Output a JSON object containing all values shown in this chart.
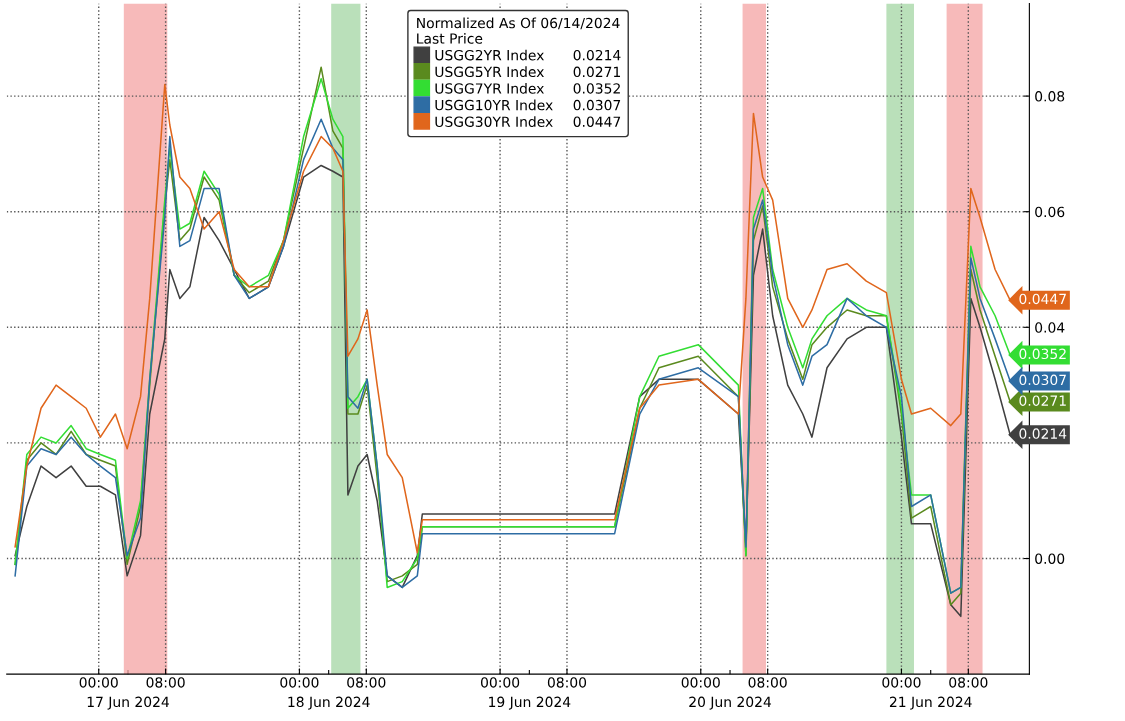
{
  "chart_data": {
    "type": "line",
    "legend_title": "Normalized As Of 06/14/2024\nLast Price",
    "x": [
      "2024-06-16T14:00",
      "2024-06-16T15:24",
      "2024-06-16T17:06",
      "2024-06-16T18:54",
      "2024-06-16T20:42",
      "2024-06-16T22:30",
      "2024-06-17T00:12",
      "2024-06-17T02:00",
      "2024-06-17T03:24",
      "2024-06-17T05:00",
      "2024-06-17T06:06",
      "2024-06-17T07:54",
      "2024-06-17T08:30",
      "2024-06-17T09:42",
      "2024-06-17T10:54",
      "2024-06-17T12:36",
      "2024-06-17T14:24",
      "2024-06-17T16:12",
      "2024-06-17T18:00",
      "2024-06-17T20:18",
      "2024-06-17T22:06",
      "2024-06-18T00:30",
      "2024-06-18T02:36",
      "2024-06-18T04:00",
      "2024-06-18T05:12",
      "2024-06-18T05:48",
      "2024-06-18T07:00",
      "2024-06-18T08:06",
      "2024-06-18T09:18",
      "2024-06-18T10:30",
      "2024-06-18T12:18",
      "2024-06-18T14:06",
      "2024-06-18T14:42",
      "2024-06-19T13:42",
      "2024-06-19T16:42",
      "2024-06-19T19:00",
      "2024-06-19T23:42",
      "2024-06-20T04:30",
      "2024-06-20T05:24",
      "2024-06-20T06:18",
      "2024-06-20T07:24",
      "2024-06-20T08:36",
      "2024-06-20T10:24",
      "2024-06-20T12:12",
      "2024-06-20T13:18",
      "2024-06-20T15:06",
      "2024-06-20T17:30",
      "2024-06-20T19:48",
      "2024-06-20T22:12",
      "2024-06-21T00:00",
      "2024-06-21T01:12",
      "2024-06-21T03:30",
      "2024-06-21T05:54",
      "2024-06-21T07:06",
      "2024-06-21T08:18",
      "2024-06-21T09:24",
      "2024-06-21T11:12",
      "2024-06-21T13:00"
    ],
    "series": [
      {
        "name": "USGG2YR Index",
        "color": "#404040",
        "values": [
          0.0005,
          0.009,
          0.016,
          0.014,
          0.016,
          0.0125,
          0.0125,
          0.011,
          -0.003,
          0.004,
          0.025,
          0.038,
          0.05,
          0.045,
          0.047,
          0.059,
          0.055,
          0.05,
          0.045,
          0.047,
          0.054,
          0.066,
          0.068,
          0.067,
          0.066,
          0.011,
          0.016,
          0.018,
          0.01,
          -0.003,
          -0.005,
          0.0005,
          0.0077,
          0.0077,
          0.028,
          0.031,
          0.031,
          0.025,
          0.002,
          0.049,
          0.057,
          0.042,
          0.03,
          0.025,
          0.021,
          0.033,
          0.038,
          0.04,
          0.04,
          0.021,
          0.006,
          0.006,
          -0.008,
          -0.01,
          0.045,
          0.04,
          0.031,
          0.0214
        ],
        "value_labels": [
          null,
          null,
          null,
          null,
          null,
          null,
          null,
          null,
          null,
          null,
          null,
          null,
          null,
          null,
          null,
          null,
          null,
          null,
          null,
          null,
          null,
          null,
          null,
          null,
          null,
          null,
          null,
          null,
          null,
          null,
          null,
          null,
          null,
          null,
          null,
          null,
          null,
          null,
          null,
          null,
          null,
          null,
          null,
          null,
          null,
          null,
          null,
          null,
          null,
          null,
          null,
          null,
          null,
          null,
          null,
          null,
          null,
          "0.0214"
        ]
      },
      {
        "name": "USGG5YR Index",
        "color": "#5a8a1e",
        "values": [
          -0.001,
          0.017,
          0.02,
          0.018,
          0.022,
          0.018,
          0.017,
          0.016,
          -0.001,
          0.009,
          0.03,
          0.061,
          0.069,
          0.055,
          0.057,
          0.066,
          0.062,
          0.049,
          0.046,
          0.048,
          0.055,
          0.071,
          0.085,
          0.074,
          0.071,
          0.025,
          0.025,
          0.03,
          0.014,
          -0.004,
          -0.003,
          -0.001,
          0.0055,
          0.0055,
          0.026,
          0.033,
          0.035,
          0.028,
          0.0005,
          0.055,
          0.061,
          0.047,
          0.038,
          0.031,
          0.037,
          0.04,
          0.043,
          0.042,
          0.042,
          0.025,
          0.007,
          0.009,
          -0.008,
          -0.006,
          0.05,
          0.043,
          0.035,
          0.0271
        ],
        "value_labels": [
          null,
          null,
          null,
          null,
          null,
          null,
          null,
          null,
          null,
          null,
          null,
          null,
          null,
          null,
          null,
          null,
          null,
          null,
          null,
          null,
          null,
          null,
          null,
          null,
          null,
          null,
          null,
          null,
          null,
          null,
          null,
          null,
          null,
          null,
          null,
          null,
          null,
          null,
          null,
          null,
          null,
          null,
          null,
          null,
          null,
          null,
          null,
          null,
          null,
          null,
          null,
          null,
          null,
          null,
          null,
          null,
          null,
          "0.0271"
        ]
      },
      {
        "name": "USGG7YR Index",
        "color": "#33dd33",
        "values": [
          -0.001,
          0.018,
          0.021,
          0.02,
          0.023,
          0.019,
          0.018,
          0.017,
          0.0,
          0.01,
          0.031,
          0.062,
          0.071,
          0.057,
          0.058,
          0.067,
          0.063,
          0.049,
          0.047,
          0.049,
          0.055,
          0.073,
          0.083,
          0.076,
          0.073,
          0.026,
          0.028,
          0.031,
          0.016,
          -0.005,
          -0.004,
          0.0,
          0.0055,
          0.0055,
          0.028,
          0.035,
          0.037,
          0.03,
          0.0005,
          0.059,
          0.064,
          0.05,
          0.04,
          0.033,
          0.038,
          0.042,
          0.045,
          0.043,
          0.042,
          0.026,
          0.011,
          0.011,
          -0.006,
          -0.005,
          0.054,
          0.047,
          0.042,
          0.0352
        ],
        "value_labels": [
          null,
          null,
          null,
          null,
          null,
          null,
          null,
          null,
          null,
          null,
          null,
          null,
          null,
          null,
          null,
          null,
          null,
          null,
          null,
          null,
          null,
          null,
          null,
          null,
          null,
          null,
          null,
          null,
          null,
          null,
          null,
          null,
          null,
          null,
          null,
          null,
          null,
          null,
          null,
          null,
          null,
          null,
          null,
          null,
          null,
          null,
          null,
          null,
          null,
          null,
          null,
          null,
          null,
          null,
          null,
          null,
          null,
          "0.0352"
        ]
      },
      {
        "name": "USGG10YR Index",
        "color": "#2e6da4",
        "values": [
          -0.003,
          0.016,
          0.019,
          0.018,
          0.021,
          0.018,
          0.016,
          0.014,
          0.0005,
          0.007,
          0.031,
          0.059,
          0.073,
          0.054,
          0.055,
          0.064,
          0.064,
          0.049,
          0.045,
          0.047,
          0.054,
          0.069,
          0.076,
          0.071,
          0.069,
          0.028,
          0.026,
          0.031,
          0.016,
          -0.003,
          -0.005,
          -0.003,
          0.0043,
          0.0043,
          0.025,
          0.031,
          0.033,
          0.028,
          0.002,
          0.057,
          0.062,
          0.049,
          0.037,
          0.03,
          0.035,
          0.037,
          0.045,
          0.042,
          0.04,
          0.028,
          0.009,
          0.011,
          -0.006,
          -0.005,
          0.052,
          0.045,
          0.038,
          0.0307
        ],
        "value_labels": [
          null,
          null,
          null,
          null,
          null,
          null,
          null,
          null,
          null,
          null,
          null,
          null,
          null,
          null,
          null,
          null,
          null,
          null,
          null,
          null,
          null,
          null,
          null,
          null,
          null,
          null,
          null,
          null,
          null,
          null,
          null,
          null,
          null,
          null,
          null,
          null,
          null,
          null,
          null,
          null,
          null,
          null,
          null,
          null,
          null,
          null,
          null,
          null,
          null,
          null,
          null,
          null,
          null,
          null,
          null,
          null,
          null,
          "0.0307"
        ]
      },
      {
        "name": "USGG30YR Index",
        "color": "#e0661c",
        "values": [
          0.002,
          0.016,
          0.026,
          0.03,
          0.028,
          0.026,
          0.021,
          0.025,
          0.019,
          0.028,
          0.045,
          0.082,
          0.075,
          0.066,
          0.064,
          0.057,
          0.06,
          0.05,
          0.047,
          0.047,
          0.055,
          0.067,
          0.073,
          0.071,
          0.067,
          0.035,
          0.038,
          0.043,
          0.03,
          0.018,
          0.014,
          0.001,
          0.0067,
          0.0067,
          0.026,
          0.03,
          0.031,
          0.025,
          0.045,
          0.077,
          0.066,
          0.062,
          0.045,
          0.04,
          0.043,
          0.05,
          0.051,
          0.048,
          0.046,
          0.031,
          0.025,
          0.026,
          0.023,
          0.025,
          0.064,
          0.059,
          0.05,
          0.0447
        ],
        "value_labels": [
          null,
          null,
          null,
          null,
          null,
          null,
          null,
          null,
          null,
          null,
          null,
          null,
          null,
          null,
          null,
          null,
          null,
          null,
          null,
          null,
          null,
          null,
          null,
          null,
          null,
          null,
          null,
          null,
          null,
          null,
          null,
          null,
          null,
          null,
          null,
          null,
          null,
          null,
          null,
          null,
          null,
          null,
          null,
          null,
          null,
          null,
          null,
          null,
          null,
          null,
          null,
          null,
          null,
          null,
          null,
          null,
          null,
          "0.0447"
        ]
      }
    ],
    "xlim": [
      "2024-06-16T13:00",
      "2024-06-21T15:18"
    ],
    "xticks": [
      {
        "value": "2024-06-17T00:00",
        "label": "00:00"
      },
      {
        "value": "2024-06-17T08:00",
        "label": "08:00"
      },
      {
        "value": "2024-06-18T00:00",
        "label": "00:00"
      },
      {
        "value": "2024-06-18T08:00",
        "label": "08:00"
      },
      {
        "value": "2024-06-19T00:00",
        "label": "00:00"
      },
      {
        "value": "2024-06-19T08:00",
        "label": "08:00"
      },
      {
        "value": "2024-06-20T00:00",
        "label": "00:00"
      },
      {
        "value": "2024-06-20T08:00",
        "label": "08:00"
      },
      {
        "value": "2024-06-21T00:00",
        "label": "00:00"
      },
      {
        "value": "2024-06-21T08:00",
        "label": "08:00"
      }
    ],
    "x2lim": [
      "2024-06-16T13:00",
      "2024-06-21T15:18"
    ],
    "x2ticks": [
      {
        "value": "2024-06-17T03:30",
        "label": "17 Jun 2024"
      },
      {
        "value": "2024-06-18T03:30",
        "label": "18 Jun 2024"
      },
      {
        "value": "2024-06-19T03:30",
        "label": "19 Jun 2024"
      },
      {
        "value": "2024-06-20T03:30",
        "label": "20 Jun 2024"
      },
      {
        "value": "2024-06-21T03:30",
        "label": "21 Jun 2024"
      }
    ],
    "ylim": [
      -0.02,
      0.096
    ],
    "yticks": [
      {
        "value": 0,
        "label": "0.00"
      },
      {
        "value": 0.02,
        "label": null
      },
      {
        "value": 0.04,
        "label": "0.04"
      },
      {
        "value": 0.06,
        "label": "0.06"
      },
      {
        "value": 0.08,
        "label": "0.08"
      }
    ],
    "bands": [
      {
        "axis": "x",
        "from": "2024-06-17T03:00",
        "to": "2024-06-17T08:12",
        "color": "#f4a3a3"
      },
      {
        "axis": "x",
        "from": "2024-06-18T03:48",
        "to": "2024-06-18T07:18",
        "color": "#a3d6a3"
      },
      {
        "axis": "x",
        "from": "2024-06-20T05:00",
        "to": "2024-06-20T07:48",
        "color": "#f4a3a3"
      },
      {
        "axis": "x",
        "from": "2024-06-20T22:12",
        "to": "2024-06-21T01:30",
        "color": "#a3d6a3"
      },
      {
        "axis": "x",
        "from": "2024-06-21T05:24",
        "to": "2024-06-21T09:42",
        "color": "#f4a3a3"
      }
    ],
    "grid": true,
    "legend": "top",
    "line_style": "solid",
    "marker": "none"
  }
}
